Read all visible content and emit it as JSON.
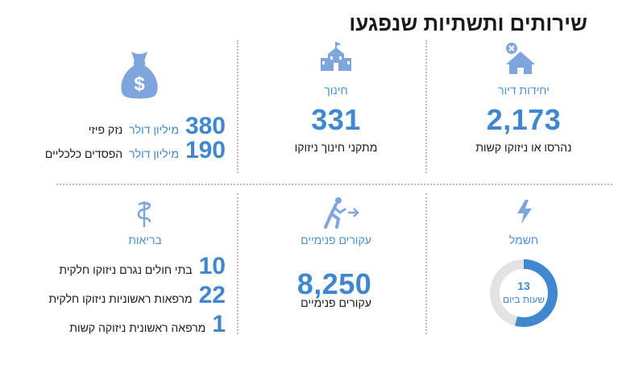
{
  "title": "שירותים ותשתיות שנפגעו",
  "housing": {
    "label": "יחידות דיור",
    "value": "2,173",
    "desc": "נהרסו או ניזוקו קשות"
  },
  "education": {
    "label": "חינוך",
    "value": "331",
    "desc": "מתקני חינוך ניזוקו"
  },
  "finance": {
    "rows": [
      {
        "value": "380",
        "unit": "מיליון דולר",
        "desc": "נזק פיזי"
      },
      {
        "value": "190",
        "unit": "מיליון דולר",
        "desc": "הפסדים כלכליים"
      }
    ]
  },
  "electricity": {
    "label": "חשמל",
    "value": "13",
    "desc": "שעות ביום",
    "fraction": 0.5417
  },
  "displaced": {
    "label": "עקורים פנימיים",
    "value": "8,250",
    "desc": "עקורים פנימיים"
  },
  "health": {
    "label": "בריאות",
    "rows": [
      {
        "value": "10",
        "desc": "בתי חולים נגרם ניזוקו חלקית"
      },
      {
        "value": "22",
        "desc": "מרפאות ראשוניות ניזוקו חלקית"
      },
      {
        "value": "1",
        "desc": "מרפאה ראשונית ניזוקה קשות"
      }
    ]
  },
  "colors": {
    "accent": "#3f88d0",
    "label": "#4a8fd6",
    "icon": "#7fa6dc",
    "ring_bg": "#e3e3e3"
  },
  "icons": {
    "housing": "house-x-icon",
    "education": "school-building-icon",
    "finance": "money-bag-icon",
    "electricity": "lightning-icon",
    "displaced": "person-running-arrow-icon",
    "health": "caduceus-icon"
  }
}
